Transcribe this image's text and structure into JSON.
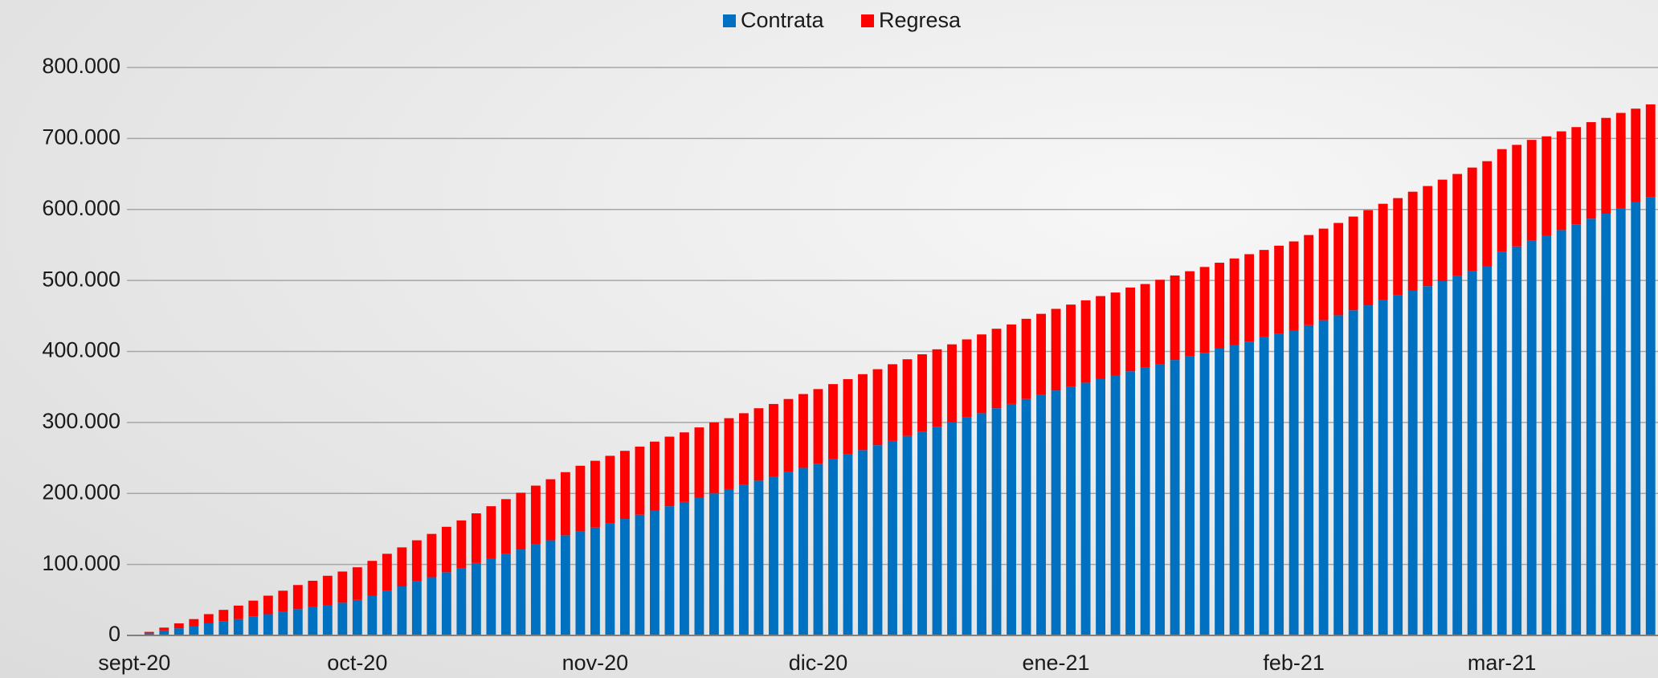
{
  "chart_data": {
    "type": "stacked_bar",
    "categories": [
      "sept-20",
      null,
      null,
      null,
      null,
      null,
      null,
      null,
      null,
      null,
      null,
      null,
      null,
      null,
      null,
      "oct-20",
      null,
      null,
      null,
      null,
      null,
      null,
      null,
      null,
      null,
      null,
      null,
      null,
      null,
      null,
      null,
      "nov-20",
      null,
      null,
      null,
      null,
      null,
      null,
      null,
      null,
      null,
      null,
      null,
      null,
      null,
      null,
      "dic-20",
      null,
      null,
      null,
      null,
      null,
      null,
      null,
      null,
      null,
      null,
      null,
      null,
      null,
      null,
      null,
      "ene-21",
      null,
      null,
      null,
      null,
      null,
      null,
      null,
      null,
      null,
      null,
      null,
      null,
      null,
      null,
      null,
      "feb-21",
      null,
      null,
      null,
      null,
      null,
      null,
      null,
      null,
      null,
      null,
      null,
      null,
      null,
      "mar-21",
      null,
      null,
      null,
      null,
      null,
      null,
      null,
      null,
      null,
      null
    ],
    "series": [
      {
        "name": "Contrata",
        "color": "#0070c0",
        "values": [
          0,
          3000,
          7000,
          10000,
          13000,
          17000,
          20000,
          23000,
          27000,
          30000,
          33000,
          37000,
          40000,
          43000,
          46000,
          50000,
          56000,
          63000,
          69000,
          76000,
          82000,
          89000,
          95000,
          102000,
          108000,
          115000,
          121000,
          128000,
          134000,
          141000,
          147000,
          152000,
          158000,
          164000,
          170000,
          176000,
          182000,
          188000,
          194000,
          200000,
          206000,
          212000,
          218000,
          224000,
          230000,
          236000,
          242000,
          248000,
          255000,
          261000,
          268000,
          274000,
          281000,
          287000,
          294000,
          300000,
          307000,
          313000,
          320000,
          326000,
          333000,
          339000,
          345000,
          350000,
          356000,
          361000,
          366000,
          372000,
          377000,
          382000,
          388000,
          393000,
          398000,
          404000,
          409000,
          414000,
          420000,
          425000,
          430000,
          437000,
          444000,
          451000,
          458000,
          465000,
          472000,
          479000,
          486000,
          492000,
          499000,
          506000,
          513000,
          520000,
          540000,
          548000,
          556000,
          563000,
          571000,
          579000,
          587000,
          594000,
          602000,
          610000,
          617000
        ]
      },
      {
        "name": "Regresa",
        "color": "#ff0000",
        "values": [
          0,
          2000,
          4000,
          7000,
          10000,
          13000,
          16000,
          19000,
          22000,
          26000,
          30000,
          34000,
          37000,
          41000,
          44000,
          46000,
          49000,
          52000,
          55000,
          58000,
          61000,
          64000,
          67000,
          70000,
          74000,
          77000,
          80000,
          83000,
          86000,
          89000,
          92000,
          94000,
          95000,
          96000,
          96000,
          97000,
          98000,
          98000,
          99000,
          100000,
          100000,
          101000,
          102000,
          102000,
          103000,
          104000,
          105000,
          106000,
          106000,
          107000,
          107000,
          108000,
          108000,
          109000,
          109000,
          110000,
          110000,
          111000,
          112000,
          112000,
          113000,
          114000,
          115000,
          116000,
          116000,
          117000,
          117000,
          118000,
          118000,
          119000,
          119000,
          120000,
          121000,
          121000,
          122000,
          123000,
          123000,
          124000,
          125000,
          127000,
          129000,
          130000,
          132000,
          134000,
          136000,
          137000,
          139000,
          141000,
          143000,
          144000,
          146000,
          148000,
          145000,
          143000,
          142000,
          140000,
          139000,
          137000,
          136000,
          135000,
          134000,
          132000,
          131000
        ]
      }
    ],
    "ylim": [
      0,
      800000
    ],
    "yticks": [
      0,
      {
        "value": 100000,
        "label": "100.000"
      },
      {
        "value": 200000,
        "label": "200.000"
      },
      {
        "value": 300000,
        "label": "300.000"
      },
      {
        "value": 400000,
        "label": "400.000"
      },
      {
        "value": 500000,
        "label": "500.000"
      },
      {
        "value": 600000,
        "label": "600.000"
      },
      {
        "value": 700000,
        "label": "700.000"
      },
      {
        "value": 800000,
        "label": "800.000"
      }
    ],
    "grid": true,
    "legend": "top"
  }
}
